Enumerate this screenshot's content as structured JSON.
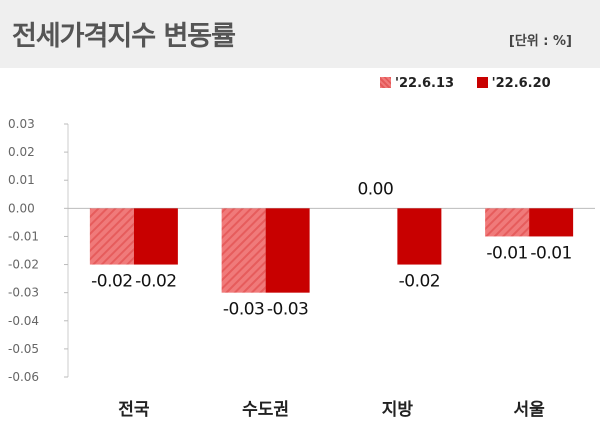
{
  "header": {
    "title": "전세가격지수 변동률",
    "unit": "[단위 : %]"
  },
  "legend": {
    "items": [
      {
        "label": "'22.6.13",
        "color": "#ef6b6b"
      },
      {
        "label": "'22.6.20",
        "color": "#c80000"
      }
    ]
  },
  "chart_data": {
    "type": "bar",
    "title": "",
    "xlabel": "",
    "ylabel": "",
    "categories": [
      "전국",
      "수도권",
      "지방",
      "서울"
    ],
    "series": [
      {
        "name": "'22.6.13",
        "values": [
          -0.02,
          -0.03,
          0.0,
          -0.01
        ],
        "color": "#ef6b6b"
      },
      {
        "name": "'22.6.20",
        "values": [
          -0.02,
          -0.03,
          -0.02,
          -0.01
        ],
        "color": "#c80000"
      }
    ],
    "data_labels": [
      [
        "-0.02",
        "-0.03",
        "0.00",
        "-0.01"
      ],
      [
        "-0.02",
        "-0.03",
        "-0.02",
        "-0.01"
      ]
    ],
    "yticks": [
      0.03,
      0.02,
      0.01,
      0.0,
      -0.01,
      -0.02,
      -0.03,
      -0.04,
      -0.05,
      -0.06
    ],
    "ytick_labels": [
      "0.03",
      "0.02",
      "0.01",
      "0.00",
      "-0.01",
      "-0.02",
      "-0.03",
      "-0.04",
      "-0.05",
      "-0.06"
    ],
    "ylim": [
      -0.06,
      0.03
    ],
    "grid": false,
    "legend_position": "top-right"
  }
}
